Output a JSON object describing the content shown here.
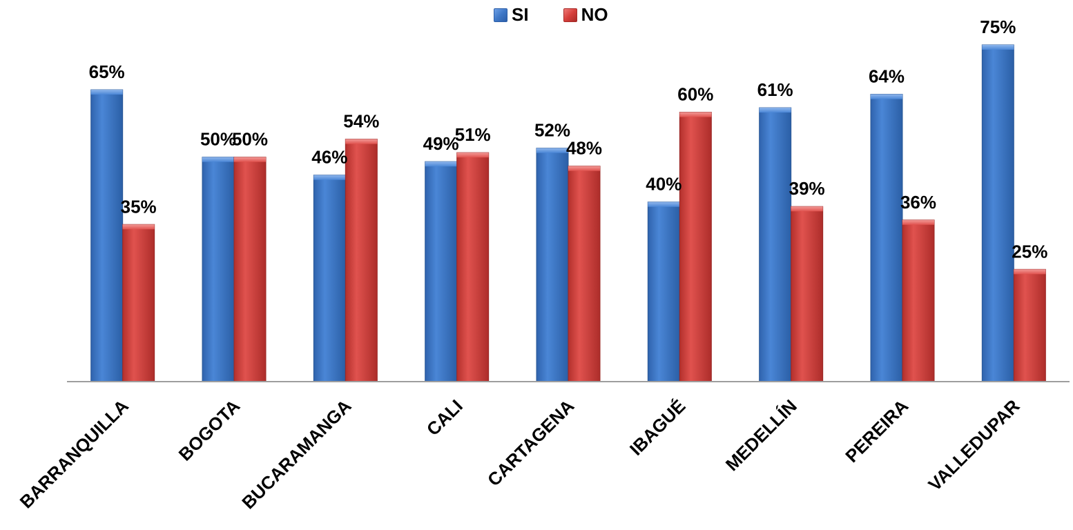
{
  "chart_data": {
    "type": "bar",
    "title": "",
    "xlabel": "",
    "ylabel": "",
    "ylim": [
      0,
      80
    ],
    "grid": false,
    "legend_position": "top-center",
    "categories": [
      "BARRANQUILLA",
      "BOGOTA",
      "BUCARAMANGA",
      "CALI",
      "CARTAGENA",
      "IBAGUÉ",
      "MEDELLÍN",
      "PEREIRA",
      "VALLEDUPAR"
    ],
    "series": [
      {
        "name": "SI",
        "color": "#3f78c7",
        "values": [
          65,
          50,
          46,
          49,
          52,
          40,
          61,
          64,
          75
        ],
        "labels": [
          "65%",
          "50%",
          "46%",
          "49%",
          "52%",
          "40%",
          "61%",
          "64%",
          "75%"
        ]
      },
      {
        "name": "NO",
        "color": "#d63f3b",
        "values": [
          35,
          50,
          54,
          51,
          48,
          60,
          39,
          36,
          25
        ],
        "labels": [
          "35%",
          "50%",
          "54%",
          "51%",
          "48%",
          "60%",
          "39%",
          "36%",
          "25%"
        ]
      }
    ]
  }
}
